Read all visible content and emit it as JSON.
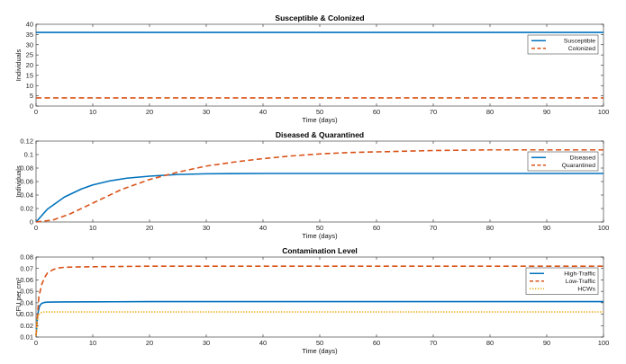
{
  "colors": {
    "blue": "#0072BD",
    "orange": "#D95319",
    "yellow": "#EDB120"
  },
  "chart_data": [
    {
      "type": "line",
      "title": "Susceptible & Colonized",
      "xlabel": "Time (days)",
      "ylabel": "Individuals",
      "xlim": [
        0,
        100
      ],
      "ylim": [
        0,
        40
      ],
      "xticks": [
        0,
        10,
        20,
        30,
        40,
        50,
        60,
        70,
        80,
        90,
        100
      ],
      "yticks": [
        0,
        5,
        10,
        15,
        20,
        25,
        30,
        35,
        40
      ],
      "ytick_labels": [
        "0",
        "5",
        "10",
        "15",
        "20",
        "25",
        "30",
        "35",
        "40"
      ],
      "legend_position": "top-right",
      "series": [
        {
          "name": "Susceptible",
          "color": "#0072BD",
          "style": "solid",
          "x": [
            0,
            100
          ],
          "y": [
            36,
            36
          ]
        },
        {
          "name": "Colonized",
          "color": "#D95319",
          "style": "dashed",
          "x": [
            0,
            100
          ],
          "y": [
            4,
            4
          ]
        }
      ]
    },
    {
      "type": "line",
      "title": "Diseased & Quarantined",
      "xlabel": "Time (days)",
      "ylabel": "Individuals",
      "xlim": [
        0,
        100
      ],
      "ylim": [
        0,
        0.12
      ],
      "xticks": [
        0,
        10,
        20,
        30,
        40,
        50,
        60,
        70,
        80,
        90,
        100
      ],
      "yticks": [
        0,
        0.02,
        0.04,
        0.06,
        0.08,
        0.1,
        0.12
      ],
      "ytick_labels": [
        "0",
        "0.02",
        "0.04",
        "0.06",
        "0.08",
        "0.1",
        "0.12"
      ],
      "legend_position": "top-right",
      "series": [
        {
          "name": "Diseased",
          "color": "#0072BD",
          "style": "solid",
          "x": [
            0,
            2,
            5,
            8,
            10,
            13,
            16,
            20,
            25,
            30,
            40,
            50,
            60,
            70,
            80,
            90,
            100
          ],
          "y": [
            0,
            0.019,
            0.037,
            0.049,
            0.055,
            0.061,
            0.065,
            0.068,
            0.0705,
            0.0715,
            0.072,
            0.072,
            0.072,
            0.072,
            0.072,
            0.072,
            0.072
          ]
        },
        {
          "name": "Quarantined",
          "color": "#D95319",
          "style": "dashed",
          "x": [
            0,
            3,
            6,
            10,
            15,
            20,
            25,
            30,
            35,
            40,
            45,
            50,
            55,
            60,
            70,
            80,
            90,
            100
          ],
          "y": [
            0,
            0.003,
            0.012,
            0.028,
            0.048,
            0.063,
            0.074,
            0.083,
            0.089,
            0.094,
            0.098,
            0.101,
            0.103,
            0.104,
            0.106,
            0.107,
            0.107,
            0.107
          ]
        }
      ]
    },
    {
      "type": "line",
      "title": "Contamination Level",
      "xlabel": "Time (days)",
      "ylabel": "CFU  per  cm²",
      "xlim": [
        0,
        100
      ],
      "ylim": [
        0.01,
        0.08
      ],
      "xticks": [
        0,
        10,
        20,
        30,
        40,
        50,
        60,
        70,
        80,
        90,
        100
      ],
      "yticks": [
        0.01,
        0.02,
        0.03,
        0.04,
        0.05,
        0.06,
        0.07,
        0.08
      ],
      "ytick_labels": [
        "0.01",
        "0.02",
        "0.03",
        "0.04",
        "0.05",
        "0.06",
        "0.07",
        "0.08"
      ],
      "legend_position": "top-right",
      "series": [
        {
          "name": "High-Traffic",
          "color": "#0072BD",
          "style": "solid",
          "x": [
            0,
            0.3,
            0.6,
            1,
            1.5,
            2,
            3,
            5,
            10,
            20,
            40,
            60,
            80,
            100
          ],
          "y": [
            0.011,
            0.03,
            0.037,
            0.0395,
            0.0403,
            0.0405,
            0.0406,
            0.0407,
            0.0408,
            0.041,
            0.041,
            0.041,
            0.041,
            0.041
          ]
        },
        {
          "name": "Low-Traffic",
          "color": "#D95319",
          "style": "dashed",
          "x": [
            0,
            0.5,
            1,
            1.5,
            2,
            3,
            4,
            5,
            7,
            10,
            20,
            40,
            60,
            80,
            100
          ],
          "y": [
            0.011,
            0.045,
            0.056,
            0.062,
            0.066,
            0.069,
            0.0705,
            0.071,
            0.0713,
            0.0715,
            0.072,
            0.072,
            0.072,
            0.072,
            0.072
          ]
        },
        {
          "name": "HCWs",
          "color": "#EDB120",
          "style": "dotted",
          "x": [
            0,
            0.2,
            0.4,
            0.7,
            1,
            1.5,
            2,
            3,
            5,
            10,
            20,
            40,
            60,
            80,
            100
          ],
          "y": [
            0.011,
            0.024,
            0.029,
            0.031,
            0.0315,
            0.032,
            0.032,
            0.032,
            0.032,
            0.032,
            0.032,
            0.032,
            0.032,
            0.032,
            0.032
          ]
        }
      ]
    }
  ]
}
